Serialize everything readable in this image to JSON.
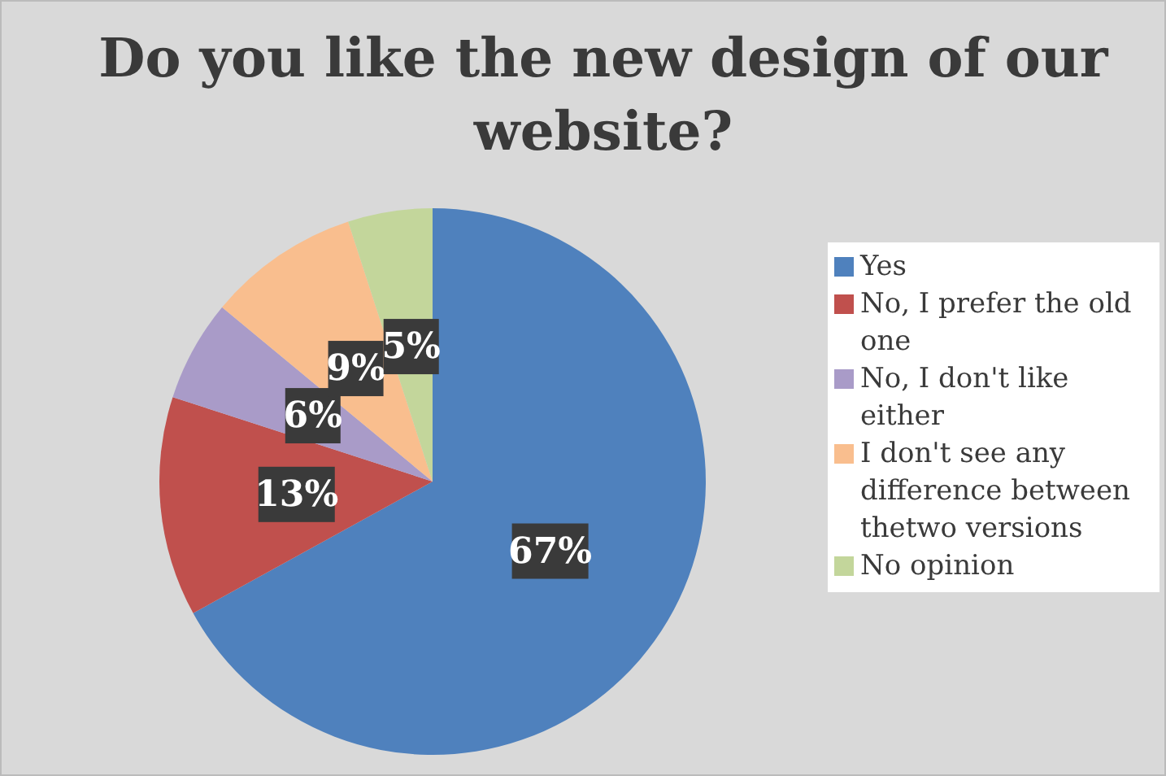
{
  "chart_data": {
    "type": "pie",
    "title": "Do you like the new design of our website?",
    "categories": [
      "Yes",
      "No, I prefer the old one",
      "No, I don't like either",
      "I don't see any difference between thetwo versions",
      "No opinion"
    ],
    "values": [
      67,
      13,
      6,
      9,
      5
    ],
    "colors": [
      "#4f81bd",
      "#c0504d",
      "#a99bc8",
      "#f9be8e",
      "#c3d69b"
    ],
    "value_labels": [
      "67%",
      "13%",
      "6%",
      "9%",
      "5%"
    ],
    "legend": "right"
  }
}
